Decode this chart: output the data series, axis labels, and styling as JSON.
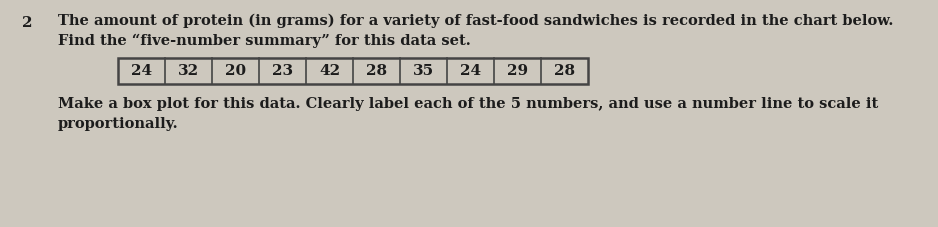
{
  "question_number": "2",
  "line1": "The amount of protein (in grams) for a variety of fast-food sandwiches is recorded in the chart below.",
  "line2": "Find the “five-number summary” for this data set.",
  "table_values": [
    24,
    32,
    20,
    23,
    42,
    28,
    35,
    24,
    29,
    28
  ],
  "line3": "Make a box plot for this data. Clearly label each of the 5 numbers, and use a number line to scale it",
  "line4": "proportionally.",
  "bg_color": "#cdc8be",
  "text_color": "#1c1c1c",
  "table_bg": "#cdc8be",
  "table_border": "#444444",
  "font_size_main": 10.5,
  "font_size_qnum": 11,
  "font_size_table": 11
}
